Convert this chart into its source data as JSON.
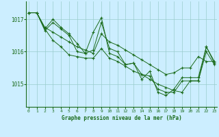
{
  "bg_color": "#cceeff",
  "line_color": "#1a6b1a",
  "grid_color": "#99cccc",
  "axis_color": "#1a6b1a",
  "xlabel": "Graphe pression niveau de la mer (hPa)",
  "x_ticks": [
    0,
    1,
    2,
    3,
    4,
    5,
    6,
    7,
    8,
    9,
    10,
    11,
    12,
    13,
    14,
    15,
    16,
    17,
    18,
    19,
    20,
    21,
    22,
    23
  ],
  "yticks": [
    1015,
    1016,
    1017
  ],
  "ylim": [
    1014.3,
    1017.55
  ],
  "xlim": [
    -0.3,
    23.3
  ],
  "series": [
    [
      1017.2,
      1017.2,
      1016.75,
      1016.6,
      1016.45,
      1016.3,
      1016.15,
      1016.05,
      1015.95,
      1016.55,
      1016.3,
      1016.2,
      1016.05,
      1015.9,
      1015.75,
      1015.6,
      1015.45,
      1015.3,
      1015.35,
      1015.5,
      1015.5,
      1015.85,
      1015.7,
      1015.7
    ],
    [
      1017.2,
      1017.2,
      1016.7,
      1017.0,
      1016.75,
      1016.55,
      1016.25,
      1015.95,
      1016.6,
      1017.05,
      1015.95,
      1015.85,
      1015.6,
      1015.65,
      1015.15,
      1015.4,
      1014.75,
      1014.65,
      1014.85,
      1015.2,
      1015.2,
      1015.2,
      1016.15,
      1015.7
    ],
    [
      1017.2,
      1017.2,
      1016.7,
      1016.35,
      1016.15,
      1015.9,
      1015.85,
      1015.8,
      1015.8,
      1016.1,
      1015.8,
      1015.7,
      1015.55,
      1015.4,
      1015.3,
      1015.15,
      1015.0,
      1014.9,
      1014.8,
      1014.75,
      1015.1,
      1015.1,
      1016.0,
      1015.6
    ],
    [
      1017.2,
      1017.2,
      1016.65,
      1016.9,
      1016.7,
      1016.5,
      1016.0,
      1015.95,
      1016.05,
      1016.9,
      1016.1,
      1016.0,
      1015.6,
      1015.65,
      1015.3,
      1015.25,
      1014.85,
      1014.75,
      1014.75,
      1015.1,
      1015.1,
      1015.1,
      1016.15,
      1015.65
    ]
  ]
}
